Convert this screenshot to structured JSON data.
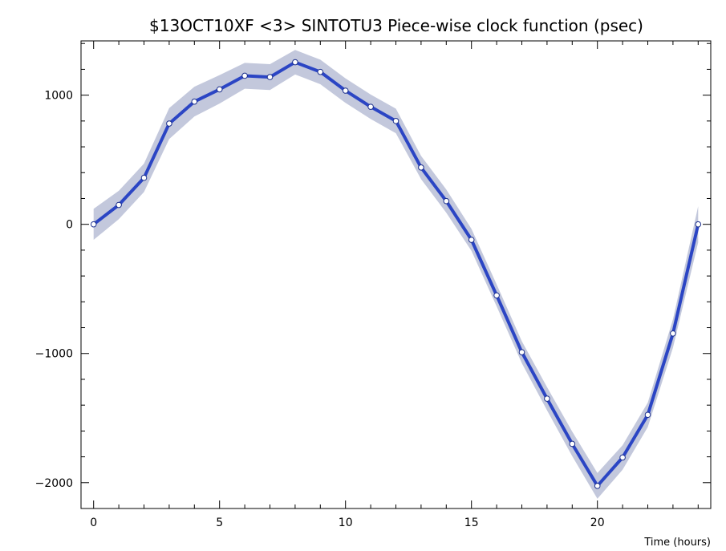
{
  "chart_data": {
    "type": "line",
    "title": "$13OCT10XF <3>  SINTOTU3  Piece-wise clock function (psec)",
    "xlabel": "Time (hours)",
    "ylabel": "",
    "xlim": [
      -0.5,
      24.5
    ],
    "ylim": [
      -2200,
      1420
    ],
    "xticks": [
      0,
      5,
      10,
      15,
      20
    ],
    "yticks": [
      -2000,
      -1000,
      0,
      1000
    ],
    "x_minor_step": 1,
    "y_minor_step": 200,
    "grid": false,
    "series": [
      {
        "x": [
          0,
          1,
          2,
          3,
          4,
          5,
          6,
          7,
          8,
          9,
          10,
          11,
          12,
          13,
          14,
          15,
          16,
          17,
          18,
          19,
          20,
          21,
          22,
          23,
          24
        ],
        "values": [
          0,
          150,
          360,
          780,
          950,
          1045,
          1150,
          1140,
          1255,
          1180,
          1035,
          910,
          800,
          440,
          180,
          -120,
          -550,
          -990,
          -1350,
          -1700,
          -2025,
          -1805,
          -1475,
          -845,
          0
        ],
        "band_halfwidth": [
          120,
          110,
          110,
          120,
          115,
          110,
          100,
          100,
          95,
          95,
          95,
          95,
          95,
          90,
          90,
          85,
          85,
          85,
          90,
          95,
          100,
          95,
          95,
          110,
          140
        ],
        "line_color": "#2b45c4",
        "band_color": "#c3c8dc",
        "marker_fill": "#ffffff",
        "marker_stroke": "#1b2f8c"
      }
    ]
  }
}
